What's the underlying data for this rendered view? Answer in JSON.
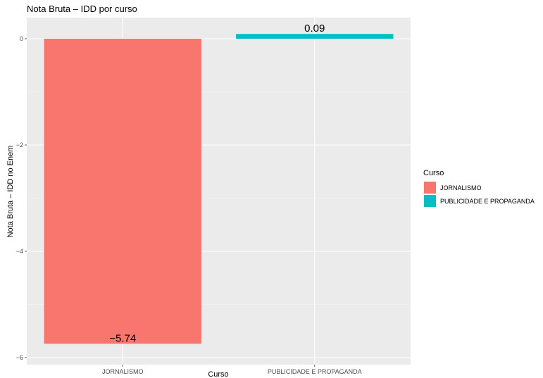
{
  "chart_data": {
    "type": "bar",
    "title": "Nota Bruta – IDD por curso",
    "xlabel": "Curso",
    "ylabel": "Nota Bruta – IDD no Enem",
    "categories": [
      "JORNALISMO",
      "PUBLICIDADE E PROPAGANDA"
    ],
    "values": [
      -5.74,
      0.09
    ],
    "value_labels": [
      "−5.74",
      "0.09"
    ],
    "colors": [
      "#F8766D",
      "#00BFC4"
    ],
    "ylim": [
      -6,
      0.3
    ],
    "y_ticks": [
      0,
      -2,
      -4,
      -6
    ],
    "y_tick_labels": [
      "0",
      "−2",
      "−4",
      "−6"
    ],
    "grid": true,
    "legend": {
      "title": "Curso",
      "position": "right",
      "items": [
        "JORNALISMO",
        "PUBLICIDADE E PROPAGANDA"
      ]
    }
  }
}
